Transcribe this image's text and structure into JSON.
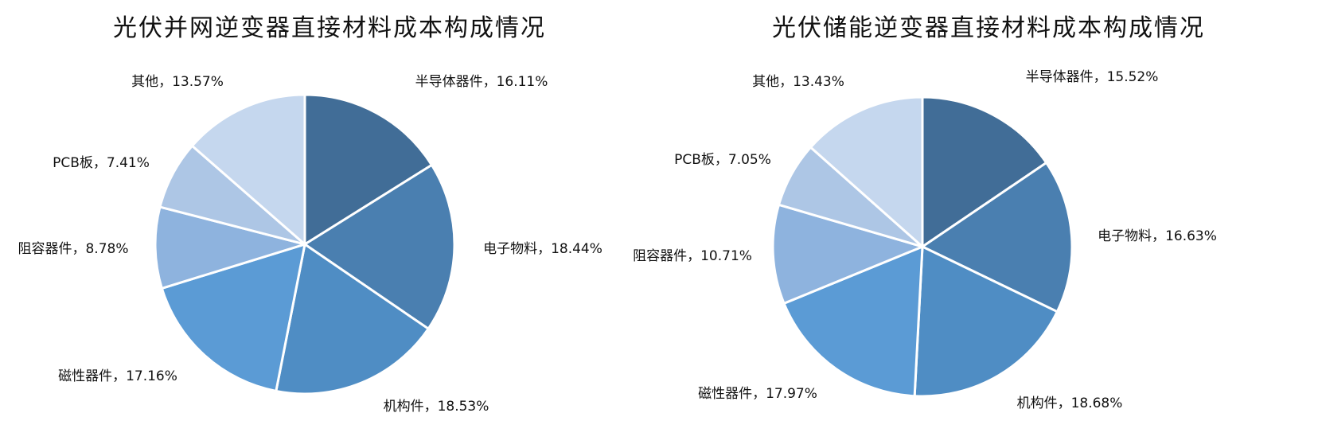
{
  "chart_data": [
    {
      "type": "pie",
      "title": "光伏并网逆变器直接材料成本构成情况",
      "slices": [
        {
          "label": "半导体器件",
          "value": 16.11,
          "text": "半导体器件，16.11%",
          "color": "#416d97"
        },
        {
          "label": "电子物料",
          "value": 18.44,
          "text": "电子物料，18.44%",
          "color": "#4a7fb0"
        },
        {
          "label": "机构件",
          "value": 18.53,
          "text": "机构件，18.53%",
          "color": "#4f8dc4"
        },
        {
          "label": "磁性器件",
          "value": 17.16,
          "text": "磁性器件，17.16%",
          "color": "#5b9bd5"
        },
        {
          "label": "阻容器件",
          "value": 8.78,
          "text": "阻容器件，8.78%",
          "color": "#8eb3de"
        },
        {
          "label": "PCB板",
          "value": 7.41,
          "text": "PCB板，7.41%",
          "color": "#adc6e5"
        },
        {
          "label": "其他",
          "value": 13.57,
          "text": "其他，13.57%",
          "color": "#c5d7ee"
        }
      ]
    },
    {
      "type": "pie",
      "title": "光伏储能逆变器直接材料成本构成情况",
      "slices": [
        {
          "label": "半导体器件",
          "value": 15.52,
          "text": "半导体器件，15.52%",
          "color": "#416d97"
        },
        {
          "label": "电子物料",
          "value": 16.63,
          "text": "电子物料，16.63%",
          "color": "#4a7fb0"
        },
        {
          "label": "机构件",
          "value": 18.68,
          "text": "机构件，18.68%",
          "color": "#4f8dc4"
        },
        {
          "label": "磁性器件",
          "value": 17.97,
          "text": "磁性器件，17.97%",
          "color": "#5b9bd5"
        },
        {
          "label": "阻容器件",
          "value": 10.71,
          "text": "阻容器件，10.71%",
          "color": "#8eb3de"
        },
        {
          "label": "PCB板",
          "value": 7.05,
          "text": "PCB板，7.05%",
          "color": "#adc6e5"
        },
        {
          "label": "其他",
          "value": 13.43,
          "text": "其他，13.43%",
          "color": "#c5d7ee"
        }
      ]
    }
  ]
}
